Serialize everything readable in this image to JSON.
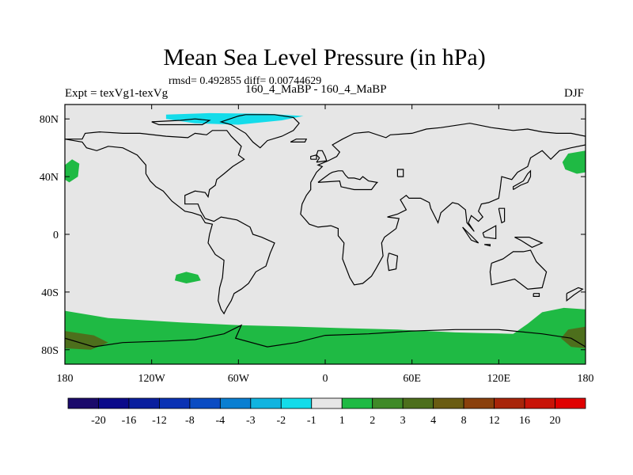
{
  "title": "Mean Sea Level Pressure (in hPa)",
  "stats": "rmsd= 0.492855 diff= 0.00744629",
  "expt_label": "Expt = texVg1-texVg",
  "subtitle": "160_4_MaBP - 160_4_MaBP",
  "season": "DJF",
  "chart_data": {
    "type": "heatmap",
    "projection": "cylindrical-equidistant",
    "x_range": [
      -180,
      180
    ],
    "y_range": [
      -90,
      90
    ],
    "lon_ticks": [
      {
        "value": -180,
        "label": "180"
      },
      {
        "value": -120,
        "label": "120W"
      },
      {
        "value": -60,
        "label": "60W"
      },
      {
        "value": 0,
        "label": "0"
      },
      {
        "value": 60,
        "label": "60E"
      },
      {
        "value": 120,
        "label": "120E"
      },
      {
        "value": 180,
        "label": "180"
      }
    ],
    "lat_ticks": [
      {
        "value": 80,
        "label": "80N"
      },
      {
        "value": 40,
        "label": "40N"
      },
      {
        "value": 0,
        "label": "0"
      },
      {
        "value": -40,
        "label": "40S"
      },
      {
        "value": -80,
        "label": "80S"
      }
    ],
    "background_color": "#e6e6e6",
    "colorbar": {
      "labels": [
        "-20",
        "-16",
        "-12",
        "-8",
        "-4",
        "-3",
        "-2",
        "-1",
        "1",
        "2",
        "3",
        "4",
        "8",
        "12",
        "16",
        "20"
      ],
      "colors": [
        "#1b0a6b",
        "#0b0a8a",
        "#0a1f9e",
        "#0a32b4",
        "#0a4cc3",
        "#0a7fd2",
        "#10b4e0",
        "#14dcea",
        "#e6e6e6",
        "#1fba44",
        "#3f8a28",
        "#4d6f1c",
        "#6a5c12",
        "#8a400c",
        "#a8250a",
        "#c81408",
        "#e00000"
      ]
    },
    "regions": [
      {
        "name": "arctic-negative-anomaly",
        "class": "-2 to -1",
        "color": "#14dcea",
        "points": [
          [
            -110,
            83
          ],
          [
            -80,
            84
          ],
          [
            -40,
            83.5
          ],
          [
            -15,
            82
          ],
          [
            -30,
            79
          ],
          [
            -60,
            76
          ],
          [
            -90,
            77
          ],
          [
            -110,
            80
          ]
        ]
      },
      {
        "name": "north-pacific-west-positive",
        "class": "1 to 2",
        "color": "#1fba44",
        "points": [
          [
            -180,
            48
          ],
          [
            -175,
            52
          ],
          [
            -170,
            49
          ],
          [
            -171,
            40
          ],
          [
            -177,
            36
          ],
          [
            -180,
            38
          ]
        ]
      },
      {
        "name": "north-pacific-east-positive",
        "class": "1 to 2",
        "color": "#1fba44",
        "points": [
          [
            180,
            58
          ],
          [
            168,
            56
          ],
          [
            164,
            50
          ],
          [
            166,
            45
          ],
          [
            174,
            42
          ],
          [
            180,
            43
          ]
        ]
      },
      {
        "name": "south-pacific-positive",
        "class": "1 to 2",
        "color": "#1fba44",
        "points": [
          [
            -103,
            -28
          ],
          [
            -96,
            -26
          ],
          [
            -88,
            -28
          ],
          [
            -86,
            -32
          ],
          [
            -96,
            -34
          ],
          [
            -104,
            -32
          ]
        ]
      },
      {
        "name": "southern-ocean-positive",
        "class": "1 to 2",
        "color": "#1fba44",
        "points": [
          [
            -180,
            -53
          ],
          [
            -150,
            -58
          ],
          [
            -100,
            -61
          ],
          [
            -60,
            -63
          ],
          [
            -20,
            -64
          ],
          [
            10,
            -65
          ],
          [
            50,
            -66
          ],
          [
            90,
            -68
          ],
          [
            130,
            -69
          ],
          [
            140,
            -62
          ],
          [
            150,
            -54
          ],
          [
            165,
            -51
          ],
          [
            180,
            -52
          ],
          [
            180,
            -90
          ],
          [
            -180,
            -90
          ]
        ]
      },
      {
        "name": "southern-pacific-core",
        "class": "3 to 4",
        "color": "#4d6f1c",
        "points": [
          [
            -180,
            -67
          ],
          [
            -160,
            -70
          ],
          [
            -150,
            -75
          ],
          [
            -162,
            -80
          ],
          [
            -180,
            -79
          ]
        ]
      },
      {
        "name": "southern-indian-core",
        "class": "3 to 4",
        "color": "#4d6f1c",
        "points": [
          [
            180,
            -64
          ],
          [
            168,
            -66
          ],
          [
            163,
            -72
          ],
          [
            170,
            -78
          ],
          [
            180,
            -79
          ]
        ]
      }
    ],
    "coastlines": [
      "M-180,66 L-168,66 L-166,70 L-156,71 L-140,70 L-128,70 L-110,68 L-95,67 L-90,70 L-82,69 L-78,72 L-68,72 L-65,68 L-58,61 L-60,55 L-56,52 L-64,47 L-70,42 L-75,38 L-76,34 L-80,31 L-81,26 L-83,29 L-90,30 L-97,27 L-97,21 L-88,21 L-86,16 L-83,11 L-77,9 L-72,12 L-61,10 L-52,5 L-50,0 L-44,-2 L-35,-6 L-38,-13 L-41,-22 L-48,-26 L-53,-34 L-58,-38 L-63,-41 L-65,-46 L-68,-51 L-70,-55 L-72,-52 L-74,-46 L-73,-37 L-71,-30 L-70,-18 L-76,-14 L-81,-6 L-80,0 L-78,7 L-83,8 L-86,13 L-92,15 L-97,16 L-106,23 L-112,30 L-117,33 L-121,37 L-124,42 L-124,48 L-130,55 L-140,60 L-150,61 L-158,58 L-165,60 L-168,64 L-180,66",
      "M-55,83 L-35,83 L-22,81 L-18,77 L-22,72 L-30,68 L-40,65 L-45,60 L-50,64 L-55,70 L-65,76 L-72,78 L-60,82 L-55,83",
      "M-120,78 L-100,79 L-90,80 L-80,79 L-85,76 L-100,76 L-115,76 L-120,78",
      "M-10,36 L-6,43 L-2,47 L-5,48 L2,51 L8,54 L10,57 L5,62 L12,66 L20,70 L30,71 L42,67 L45,69 L60,70 L70,73 L80,74 L100,77 L115,74 L130,72 L140,73 L150,71 L160,70 L170,70 L180,68 L180,62 L170,60 L162,58 L156,52 L150,58 L142,53 L140,47 L133,43 L129,38 L122,40 L121,32 L120,25 L113,22 L108,21 L106,16 L109,12 L106,9 L101,13 L99,8 L103,2 L98,8 L97,17 L92,21 L88,22 L80,15 L78,8 L73,18 L72,22 L66,25 L58,25 L56,27 L52,24 L56,17 L50,14 L43,12 L51,11 L49,4 L41,-2 L39,-6 L40,-15 L35,-24 L32,-29 L26,-34 L20,-35 L17,-30 L12,-17 L13,-6 L9,-1 L9,4 L4,6 L-5,5 L-11,7 L-17,14 L-16,21 L-13,27 L-10,31 L-10,36",
      "M-5,36 L10,37 L11,33 L20,31 L26,31 L32,31 L35,35 L36,36 L30,37 L26,40 L24,38 L20,39 L16,39 L14,41 L12,44 L9,44 L5,43 L3,42 L-1,39 L-5,36",
      "M-6,50 L1,51 L0,54 L-2,58 L-5,58 L-6,55 L-4,53 L-6,50",
      "M-10,52 L-6,52 L-6,55 L-10,54 L-10,52",
      "M-24,64 L-14,64 L-13,66 L-20,66 L-24,64",
      "M50,40 L54,40 L54,45 L50,45 L50,40",
      "M115,-20 L123,-17 L130,-12 L137,-12 L142,-11 L146,-19 L153,-26 L150,-37 L140,-38 L131,-31 L115,-35 L114,-26 L115,-20",
      "M144,-41 L148,-41 L148,-43 L144,-43 L144,-41",
      "M167,-41 L175,-37 L178,-38 L172,-42 L167,-46 L167,-41",
      "M44,-13 L50,-15 L49,-24 L44,-25 L43,-18 L44,-13",
      "M130,31 L135,34 L140,36 L142,40 L142,44 L140,42 L137,37 L130,33 L130,31",
      "M95,5 L100,0 L106,-6 L101,-4 L95,5",
      "M110,-7 L114,-8 L114,-7 L110,-7",
      "M109,1 L118,6 L118,-3 L110,-2 L109,1",
      "M120,18 L124,18 L124,9 L122,8 L120,18",
      "M131,-2 L141,-2 L150,-6 L143,-9 L135,-4 L131,-2",
      "M-180,-72 L-160,-78 L-140,-75 L-110,-74 L-90,-73 L-70,-69 L-58,-63 L-62,-72 L-40,-78 L-20,-75 L0,-70 L30,-69 L60,-67 L90,-66 L120,-66 L150,-69 L170,-72 L180,-78"
    ]
  }
}
